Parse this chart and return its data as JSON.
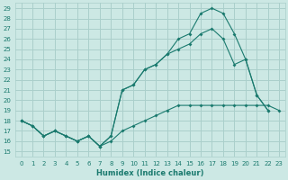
{
  "xlabel": "Humidex (Indice chaleur)",
  "bg_color": "#cce8e4",
  "grid_color": "#aacfcb",
  "line_color": "#1a7a6e",
  "xlim": [
    -0.5,
    23.5
  ],
  "ylim": [
    14.5,
    29.5
  ],
  "xticks": [
    0,
    1,
    2,
    3,
    4,
    5,
    6,
    7,
    8,
    9,
    10,
    11,
    12,
    13,
    14,
    15,
    16,
    17,
    18,
    19,
    20,
    21,
    22,
    23
  ],
  "yticks": [
    15,
    16,
    17,
    18,
    19,
    20,
    21,
    22,
    23,
    24,
    25,
    26,
    27,
    28,
    29
  ],
  "line_straight_x": [
    0,
    1,
    2,
    3,
    4,
    5,
    6,
    7,
    8,
    9,
    10,
    11,
    12,
    13,
    14,
    15,
    16,
    17,
    18,
    19,
    20,
    21,
    22,
    23
  ],
  "line_straight_y": [
    18,
    17.5,
    16.5,
    17,
    16.5,
    16,
    16.5,
    15.5,
    16,
    17,
    17.5,
    18,
    18.5,
    19,
    19.5,
    19.5,
    19.5,
    19.5,
    19.5,
    19.5,
    19.5,
    19.5,
    19.5,
    19
  ],
  "line_mid_x": [
    0,
    1,
    2,
    3,
    4,
    5,
    6,
    7,
    8,
    9,
    10,
    11,
    12,
    13,
    14,
    15,
    16,
    17,
    18,
    19,
    20,
    21,
    22
  ],
  "line_mid_y": [
    18,
    17.5,
    16.5,
    17,
    16.5,
    16,
    16.5,
    15.5,
    16.5,
    21,
    21.5,
    23,
    23.5,
    24.5,
    25,
    25.5,
    26.5,
    27,
    26,
    23.5,
    24,
    20.5,
    19
  ],
  "line_top_x": [
    0,
    1,
    2,
    3,
    4,
    5,
    6,
    7,
    8,
    9,
    10,
    11,
    12,
    13,
    14,
    15,
    16,
    17,
    18,
    19,
    20,
    21,
    22
  ],
  "line_top_y": [
    18,
    17.5,
    16.5,
    17,
    16.5,
    16,
    16.5,
    15.5,
    16.5,
    21,
    21.5,
    23,
    23.5,
    24.5,
    26,
    26.5,
    28.5,
    29,
    28.5,
    26.5,
    24,
    20.5,
    19
  ]
}
